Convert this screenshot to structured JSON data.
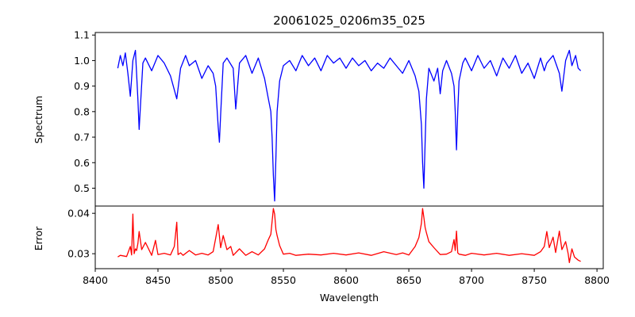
{
  "chart_data": [
    {
      "type": "line",
      "title": "20061025_0206m35_025",
      "xlabel": "",
      "ylabel": "Spectrum",
      "xlim": [
        8400,
        8805
      ],
      "ylim": [
        0.43,
        1.11
      ],
      "xticks": [],
      "yticks": [
        0.5,
        0.6,
        0.7,
        0.8,
        0.9,
        1.0,
        1.1
      ],
      "ytick_labels": [
        "0.5",
        "0.6",
        "0.7",
        "0.8",
        "0.9",
        "1.0",
        "1.1"
      ],
      "grid": false,
      "series": [
        {
          "color": "#0000ff",
          "x": [
            8418,
            8420,
            8422,
            8424,
            8426,
            8428,
            8430,
            8432,
            8434,
            8435,
            8436,
            8438,
            8440,
            8445,
            8450,
            8455,
            8460,
            8465,
            8468,
            8472,
            8475,
            8480,
            8485,
            8490,
            8494,
            8496,
            8498,
            8499,
            8500,
            8502,
            8505,
            8510,
            8512,
            8513,
            8515,
            8520,
            8525,
            8530,
            8535,
            8538,
            8540,
            8541,
            8542,
            8543,
            8544,
            8545,
            8547,
            8550,
            8555,
            8560,
            8565,
            8570,
            8575,
            8580,
            8585,
            8590,
            8595,
            8600,
            8605,
            8610,
            8615,
            8620,
            8625,
            8630,
            8635,
            8640,
            8645,
            8650,
            8655,
            8658,
            8660,
            8661,
            8662,
            8663,
            8664,
            8666,
            8670,
            8673,
            8675,
            8677,
            8680,
            8684,
            8686,
            8687,
            8688,
            8689,
            8690,
            8693,
            8695,
            8700,
            8705,
            8710,
            8715,
            8720,
            8725,
            8730,
            8735,
            8740,
            8745,
            8750,
            8755,
            8758,
            8760,
            8765,
            8770,
            8772,
            8775,
            8778,
            8780,
            8783,
            8785,
            8787
          ],
          "y": [
            0.97,
            1.02,
            0.98,
            1.03,
            0.95,
            0.86,
            1.0,
            1.04,
            0.85,
            0.73,
            0.82,
            0.99,
            1.01,
            0.96,
            1.02,
            0.99,
            0.94,
            0.85,
            0.97,
            1.02,
            0.98,
            1.0,
            0.93,
            0.98,
            0.95,
            0.9,
            0.74,
            0.68,
            0.79,
            0.99,
            1.01,
            0.97,
            0.81,
            0.87,
            0.99,
            1.02,
            0.95,
            1.01,
            0.93,
            0.85,
            0.8,
            0.7,
            0.55,
            0.45,
            0.62,
            0.8,
            0.92,
            0.98,
            1.0,
            0.96,
            1.02,
            0.98,
            1.01,
            0.96,
            1.02,
            0.99,
            1.01,
            0.97,
            1.01,
            0.98,
            1.0,
            0.96,
            0.99,
            0.97,
            1.01,
            0.98,
            0.95,
            1.0,
            0.94,
            0.88,
            0.75,
            0.6,
            0.5,
            0.68,
            0.85,
            0.97,
            0.92,
            0.97,
            0.87,
            0.96,
            1.0,
            0.95,
            0.9,
            0.8,
            0.65,
            0.8,
            0.92,
            0.99,
            1.01,
            0.96,
            1.02,
            0.97,
            1.0,
            0.94,
            1.01,
            0.97,
            1.02,
            0.95,
            0.99,
            0.93,
            1.01,
            0.96,
            0.99,
            1.02,
            0.95,
            0.88,
            1.0,
            1.04,
            0.98,
            1.02,
            0.97,
            0.96
          ]
        }
      ]
    },
    {
      "type": "line",
      "title": "",
      "xlabel": "Wavelength",
      "ylabel": "Error",
      "xlim": [
        8400,
        8805
      ],
      "ylim": [
        0.0263,
        0.0418
      ],
      "xticks": [
        8400,
        8450,
        8500,
        8550,
        8600,
        8650,
        8700,
        8750,
        8800
      ],
      "xtick_labels": [
        "8400",
        "8450",
        "8500",
        "8550",
        "8600",
        "8650",
        "8700",
        "8750",
        "8800"
      ],
      "yticks": [
        0.03,
        0.04
      ],
      "ytick_labels": [
        "0.03",
        "0.04"
      ],
      "grid": false,
      "series": [
        {
          "color": "#ff0000",
          "x": [
            8418,
            8420,
            8425,
            8428,
            8429,
            8430,
            8431,
            8432,
            8433,
            8434,
            8435,
            8437,
            8440,
            8445,
            8448,
            8450,
            8455,
            8460,
            8463,
            8465,
            8466,
            8468,
            8470,
            8475,
            8480,
            8485,
            8490,
            8494,
            8496,
            8498,
            8500,
            8502,
            8505,
            8508,
            8510,
            8515,
            8520,
            8525,
            8530,
            8535,
            8538,
            8540,
            8542,
            8543,
            8544,
            8545,
            8547,
            8550,
            8555,
            8560,
            8570,
            8580,
            8590,
            8600,
            8610,
            8620,
            8630,
            8640,
            8645,
            8650,
            8655,
            8658,
            8660,
            8661,
            8662,
            8663,
            8664,
            8666,
            8670,
            8675,
            8680,
            8684,
            8686,
            8687,
            8688,
            8689,
            8690,
            8695,
            8700,
            8710,
            8720,
            8730,
            8740,
            8750,
            8755,
            8758,
            8760,
            8762,
            8765,
            8767,
            8770,
            8772,
            8775,
            8777,
            8778,
            8780,
            8782,
            8785,
            8787
          ],
          "y": [
            0.0292,
            0.0296,
            0.0293,
            0.0318,
            0.0297,
            0.0398,
            0.03,
            0.0312,
            0.0308,
            0.0325,
            0.0355,
            0.031,
            0.0328,
            0.0296,
            0.0333,
            0.0298,
            0.0301,
            0.0297,
            0.0318,
            0.0378,
            0.0298,
            0.0302,
            0.0296,
            0.0308,
            0.0297,
            0.0301,
            0.0297,
            0.0305,
            0.0338,
            0.0372,
            0.0315,
            0.0345,
            0.031,
            0.0318,
            0.0296,
            0.0312,
            0.0296,
            0.0305,
            0.0297,
            0.0312,
            0.0335,
            0.0348,
            0.0412,
            0.0398,
            0.036,
            0.0345,
            0.032,
            0.0299,
            0.0301,
            0.0296,
            0.0299,
            0.0297,
            0.0301,
            0.0297,
            0.0302,
            0.0296,
            0.0305,
            0.0298,
            0.0302,
            0.0297,
            0.0318,
            0.034,
            0.0375,
            0.0412,
            0.039,
            0.0365,
            0.0352,
            0.033,
            0.0315,
            0.0298,
            0.0299,
            0.0305,
            0.0335,
            0.0308,
            0.0356,
            0.0302,
            0.0299,
            0.0296,
            0.0301,
            0.0297,
            0.0301,
            0.0296,
            0.03,
            0.0296,
            0.0305,
            0.0318,
            0.0355,
            0.0315,
            0.0341,
            0.0303,
            0.0356,
            0.031,
            0.033,
            0.03,
            0.0278,
            0.0312,
            0.0292,
            0.0284,
            0.0281
          ]
        }
      ]
    }
  ]
}
